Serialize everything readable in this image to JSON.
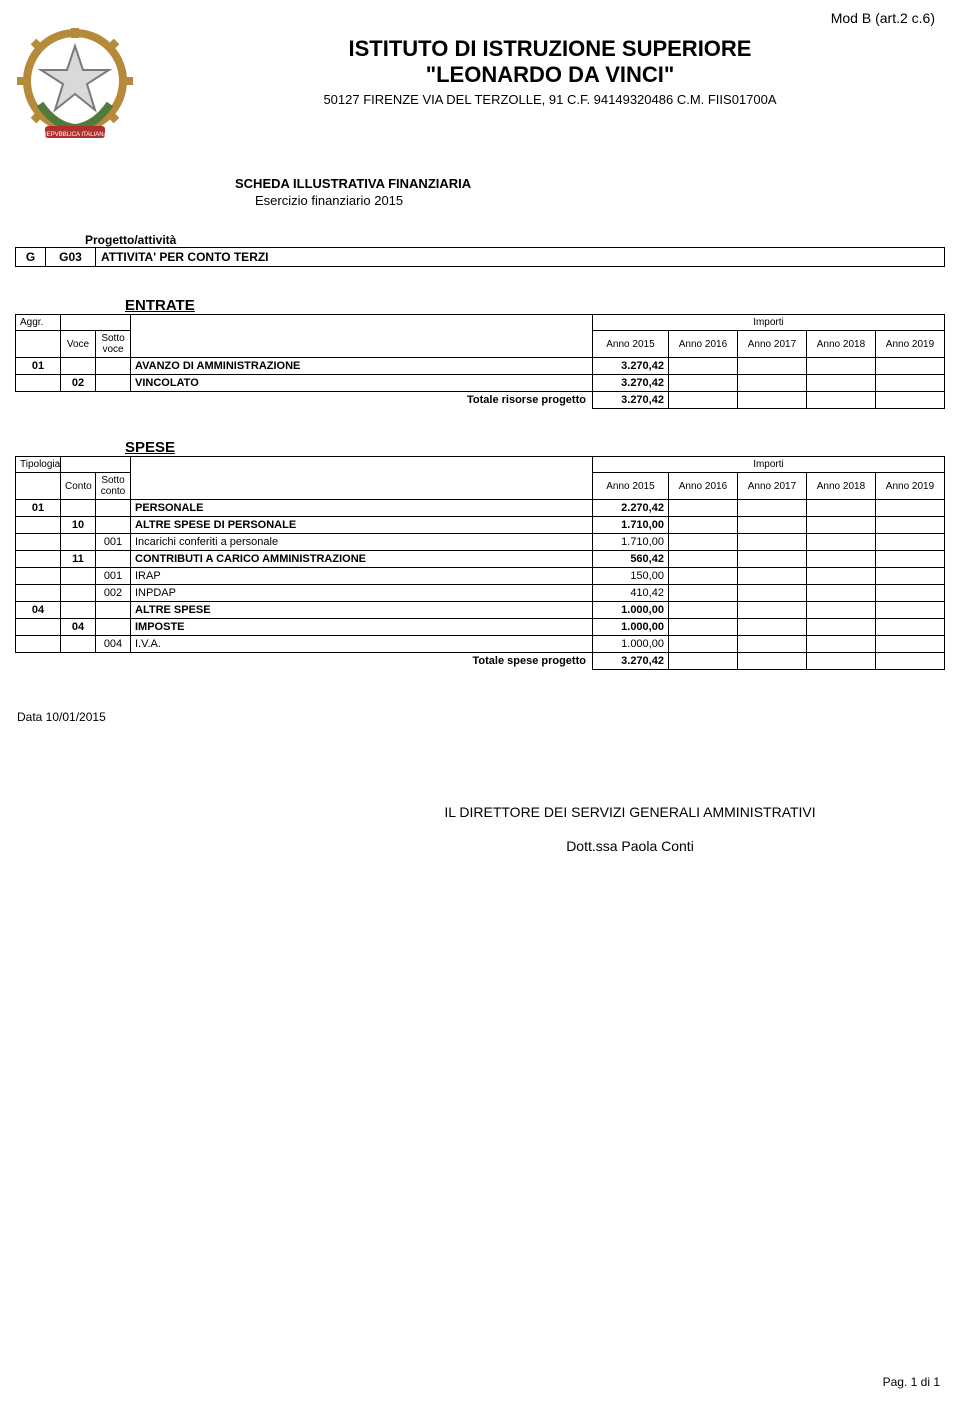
{
  "header": {
    "mod": "Mod B (art.2 c.6)",
    "org_line1": "ISTITUTO DI ISTRUZIONE SUPERIORE",
    "org_line2": "\"LEONARDO DA VINCI\"",
    "address": "50127 FIRENZE VIA DEL TERZOLLE, 91 C.F. 94149320486 C.M. FIIS01700A",
    "scheda_title": "SCHEDA ILLUSTRATIVA FINANZIARIA",
    "scheda_sub": "Esercizio finanziario 2015"
  },
  "progetto": {
    "label": "Progetto/attività",
    "col1": "G",
    "col2": "G03",
    "desc": "ATTIVITA' PER CONTO TERZI"
  },
  "entrate": {
    "title": "ENTRATE",
    "hdr": {
      "aggr": "Aggr.",
      "voce": "Voce",
      "sottovoce": "Sotto voce",
      "importi": "Importi",
      "y1": "Anno 2015",
      "y2": "Anno 2016",
      "y3": "Anno 2017",
      "y4": "Anno 2018",
      "y5": "Anno 2019"
    },
    "rows": [
      {
        "a": "01",
        "b": "",
        "c": "",
        "desc": "AVANZO DI AMMINISTRAZIONE",
        "bold": true,
        "v1": "3.270,42"
      },
      {
        "a": "",
        "b": "02",
        "c": "",
        "desc": "VINCOLATO",
        "bold": true,
        "v1": "3.270,42"
      }
    ],
    "total_label": "Totale risorse progetto",
    "total_val": "3.270,42"
  },
  "spese": {
    "title": "SPESE",
    "hdr": {
      "tipologia": "Tipologia",
      "conto": "Conto",
      "sottoconto": "Sotto conto",
      "importi": "Importi",
      "y1": "Anno 2015",
      "y2": "Anno 2016",
      "y3": "Anno 2017",
      "y4": "Anno 2018",
      "y5": "Anno 2019"
    },
    "rows": [
      {
        "a": "01",
        "b": "",
        "c": "",
        "desc": "PERSONALE",
        "bold": true,
        "v1": "2.270,42"
      },
      {
        "a": "",
        "b": "10",
        "c": "",
        "desc": "ALTRE SPESE DI PERSONALE",
        "bold": true,
        "v1": "1.710,00"
      },
      {
        "a": "",
        "b": "",
        "c": "001",
        "desc": "Incarichi conferiti a personale",
        "bold": false,
        "v1": "1.710,00"
      },
      {
        "a": "",
        "b": "11",
        "c": "",
        "desc": "CONTRIBUTI A CARICO AMMINISTRAZIONE",
        "bold": true,
        "v1": "560,42"
      },
      {
        "a": "",
        "b": "",
        "c": "001",
        "desc": "IRAP",
        "bold": false,
        "v1": "150,00"
      },
      {
        "a": "",
        "b": "",
        "c": "002",
        "desc": "INPDAP",
        "bold": false,
        "v1": "410,42"
      },
      {
        "a": "04",
        "b": "",
        "c": "",
        "desc": "ALTRE SPESE",
        "bold": true,
        "v1": "1.000,00"
      },
      {
        "a": "",
        "b": "04",
        "c": "",
        "desc": "IMPOSTE",
        "bold": true,
        "v1": "1.000,00"
      },
      {
        "a": "",
        "b": "",
        "c": "004",
        "desc": "I.V.A.",
        "bold": false,
        "v1": "1.000,00"
      }
    ],
    "total_label": "Totale spese progetto",
    "total_val": "3.270,42"
  },
  "footer": {
    "date": "Data 10/01/2015",
    "sig_title": "IL DIRETTORE DEI SERVIZI GENERALI AMMINISTRATIVI",
    "sig_name": "Dott.ssa Paola Conti",
    "page": "Pag. 1 di 1"
  },
  "logo": {
    "gear_color": "#b58a3a",
    "star_fill": "#d9d9d9",
    "star_stroke": "#7a7a7a",
    "leaf_color": "#527a3a",
    "ribbon_color": "#b03030"
  }
}
